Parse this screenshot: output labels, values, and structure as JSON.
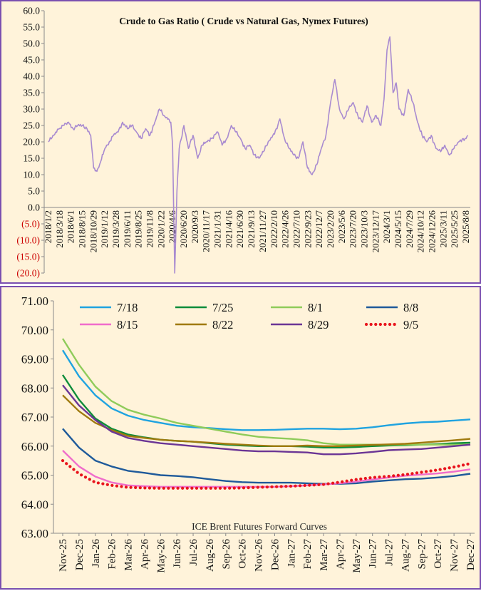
{
  "chart_data": [
    {
      "type": "line",
      "title": "Crude to Gas Ratio ( Crude vs Natural Gas, Nymex Futures)",
      "ylim": [
        -20,
        60
      ],
      "yticks": [
        60,
        55,
        50,
        45,
        40,
        35,
        30,
        25,
        20,
        15,
        10,
        5,
        0,
        -5,
        -10,
        -15,
        -20
      ],
      "ytick_labels": [
        "60.0",
        "55.0",
        "50.0",
        "45.0",
        "40.0",
        "35.0",
        "30.0",
        "25.0",
        "20.0",
        "15.0",
        "10.0",
        "5.0",
        "0.0",
        "(5.0)",
        "(10.0)",
        "(15.0)",
        "(20.0)"
      ],
      "xticks": [
        "2018/1/2",
        "2018/3/18",
        "2018/6/1",
        "2018/8/15",
        "2018/10/29",
        "2019/1/12",
        "2019/3/28",
        "2019/6/11",
        "2019/8/25",
        "2019/11/8",
        "2020/1/22",
        "2020/4/6",
        "2020/6/20",
        "2020/9/3",
        "2020/11/17",
        "2021/1/31",
        "2021/4/16",
        "2021/6/30",
        "2021/9/13",
        "2021/11/27",
        "2022/2/10",
        "2022/4/26",
        "2022/7/10",
        "2022/9/23",
        "2022/12/7",
        "2023/2/20",
        "2023/5/6",
        "2023/7/20",
        "2023/10/3",
        "2023/12/17",
        "2024/3/1",
        "2024/5/15",
        "2024/7/29",
        "2024/10/12",
        "2024/12/26",
        "2025/3/11",
        "2025/5/25",
        "2025/8/8"
      ],
      "grid": false,
      "series": [
        {
          "color": "#A98BD0",
          "x": [
            "2018/1/2",
            "2018/2/1",
            "2018/3/15",
            "2018/4/15",
            "2018/5/15",
            "2018/6/15",
            "2018/7/15",
            "2018/8/15",
            "2018/9/15",
            "2018/10/10",
            "2018/10/29",
            "2018/11/20",
            "2018/12/15",
            "2019/1/12",
            "2019/2/10",
            "2019/3/10",
            "2019/4/10",
            "2019/5/10",
            "2019/6/11",
            "2019/7/10",
            "2019/8/10",
            "2019/9/10",
            "2019/10/10",
            "2019/11/8",
            "2019/12/10",
            "2020/1/10",
            "2020/2/10",
            "2020/3/10",
            "2020/3/25",
            "2020/4/6",
            "2020/4/20",
            "2020/5/5",
            "2020/5/20",
            "2020/6/20",
            "2020/7/20",
            "2020/8/20",
            "2020/9/20",
            "2020/10/20",
            "2020/11/17",
            "2020/12/20",
            "2021/1/31",
            "2021/3/1",
            "2021/4/1",
            "2021/5/1",
            "2021/6/1",
            "2021/7/1",
            "2021/8/1",
            "2021/9/1",
            "2021/10/1",
            "2021/11/1",
            "2021/12/1",
            "2022/1/1",
            "2022/2/1",
            "2022/3/1",
            "2022/3/20",
            "2022/4/20",
            "2022/5/20",
            "2022/6/20",
            "2022/7/20",
            "2022/8/20",
            "2022/9/20",
            "2022/10/20",
            "2022/11/20",
            "2022/12/20",
            "2023/1/20",
            "2023/2/20",
            "2023/3/20",
            "2023/4/20",
            "2023/5/20",
            "2023/6/20",
            "2023/7/20",
            "2023/8/20",
            "2023/9/20",
            "2023/10/20",
            "2023/11/20",
            "2023/12/20",
            "2024/1/20",
            "2024/2/10",
            "2024/3/1",
            "2024/3/20",
            "2024/4/10",
            "2024/5/1",
            "2024/5/20",
            "2024/6/20",
            "2024/7/20",
            "2024/8/20",
            "2024/9/20",
            "2024/10/20",
            "2024/11/20",
            "2024/12/20",
            "2025/1/20",
            "2025/2/20",
            "2025/3/20",
            "2025/4/20",
            "2025/5/20",
            "2025/6/20",
            "2025/7/20",
            "2025/8/8",
            "2025/8/20"
          ],
          "values": [
            20,
            22,
            24,
            25,
            26,
            24,
            25,
            25,
            24,
            22,
            12,
            11,
            14,
            18,
            20,
            22,
            23,
            26,
            24,
            25,
            23,
            21,
            24,
            22,
            26,
            30,
            28,
            27,
            26,
            19,
            -20,
            5,
            18,
            25,
            18,
            22,
            15,
            19,
            20,
            21,
            23,
            19,
            21,
            25,
            23,
            21,
            18,
            19,
            16,
            15,
            17,
            20,
            22,
            24,
            27,
            21,
            18,
            16,
            15,
            20,
            12,
            10,
            13,
            18,
            22,
            32,
            39,
            30,
            27,
            30,
            32,
            28,
            26,
            31,
            26,
            28,
            25,
            33,
            48,
            52,
            35,
            38,
            30,
            28,
            36,
            32,
            26,
            22,
            20,
            22,
            18,
            17,
            19,
            16,
            18,
            20,
            21,
            21,
            22
          ]
        }
      ]
    },
    {
      "type": "line",
      "title": "ICE Brent Futures Forward Curves",
      "ylim": [
        63,
        71
      ],
      "yticks": [
        71,
        70,
        69,
        68,
        67,
        66,
        65,
        64,
        63
      ],
      "ytick_labels": [
        "71.00",
        "70.00",
        "69.00",
        "68.00",
        "67.00",
        "66.00",
        "65.00",
        "64.00",
        "63.00"
      ],
      "categories": [
        "Nov-25",
        "Dec-25",
        "Jan-26",
        "Feb-26",
        "Mar-26",
        "Apr-26",
        "May-26",
        "Jun-26",
        "Jul-26",
        "Aug-26",
        "Sep-26",
        "Oct-26",
        "Nov-26",
        "Dec-26",
        "Jan-27",
        "Feb-27",
        "Mar-27",
        "Apr-27",
        "May-27",
        "Jun-27",
        "Jul-27",
        "Aug-27",
        "Sep-27",
        "Oct-27",
        "Nov-27",
        "Dec-27"
      ],
      "legend": "top",
      "grid": false,
      "series": [
        {
          "name": "7/18",
          "color": "#1FA3E0",
          "dash": "solid",
          "values": [
            69.3,
            68.4,
            67.75,
            67.3,
            67.05,
            66.9,
            66.8,
            66.7,
            66.65,
            66.62,
            66.58,
            66.55,
            66.55,
            66.56,
            66.58,
            66.6,
            66.6,
            66.58,
            66.6,
            66.65,
            66.72,
            66.78,
            66.82,
            66.84,
            66.88,
            66.92
          ]
        },
        {
          "name": "7/25",
          "color": "#0E8C3A",
          "dash": "solid",
          "values": [
            68.45,
            67.6,
            66.95,
            66.6,
            66.4,
            66.3,
            66.22,
            66.18,
            66.15,
            66.1,
            66.05,
            66.02,
            66.0,
            66.0,
            66.0,
            65.98,
            65.95,
            65.95,
            65.97,
            66.0,
            66.02,
            66.03,
            66.05,
            66.07,
            66.1,
            66.12
          ]
        },
        {
          "name": "8/1",
          "color": "#8FCB5A",
          "dash": "solid",
          "values": [
            69.7,
            68.8,
            68.05,
            67.55,
            67.25,
            67.08,
            66.95,
            66.8,
            66.7,
            66.6,
            66.5,
            66.4,
            66.32,
            66.28,
            66.25,
            66.2,
            66.1,
            66.05,
            66.05,
            66.05,
            66.05,
            66.05,
            66.05,
            66.05,
            66.05,
            66.05
          ]
        },
        {
          "name": "8/8",
          "color": "#1F5A9A",
          "dash": "solid",
          "values": [
            66.6,
            65.95,
            65.5,
            65.3,
            65.15,
            65.08,
            65.0,
            64.97,
            64.93,
            64.86,
            64.8,
            64.76,
            64.74,
            64.74,
            64.74,
            64.72,
            64.7,
            64.7,
            64.72,
            64.78,
            64.82,
            64.86,
            64.88,
            64.92,
            64.97,
            65.05
          ]
        },
        {
          "name": "8/15",
          "color": "#F06CCB",
          "dash": "solid",
          "values": [
            65.85,
            65.3,
            64.95,
            64.75,
            64.65,
            64.62,
            64.6,
            64.6,
            64.6,
            64.6,
            64.6,
            64.6,
            64.6,
            64.6,
            64.62,
            64.65,
            64.68,
            64.72,
            64.78,
            64.85,
            64.92,
            64.98,
            65.02,
            65.06,
            65.12,
            65.2
          ]
        },
        {
          "name": "8/22",
          "color": "#A07A0E",
          "dash": "solid",
          "values": [
            67.75,
            67.2,
            66.8,
            66.55,
            66.35,
            66.28,
            66.22,
            66.18,
            66.15,
            66.12,
            66.08,
            66.05,
            66.02,
            66.0,
            66.0,
            66.02,
            66.0,
            66.0,
            66.02,
            66.04,
            66.06,
            66.08,
            66.12,
            66.16,
            66.2,
            66.25
          ]
        },
        {
          "name": "8/29",
          "color": "#6B3595",
          "dash": "solid",
          "values": [
            68.1,
            67.4,
            66.9,
            66.5,
            66.28,
            66.18,
            66.1,
            66.05,
            66.0,
            65.95,
            65.9,
            65.85,
            65.82,
            65.82,
            65.8,
            65.78,
            65.72,
            65.72,
            65.75,
            65.8,
            65.86,
            65.88,
            65.9,
            65.95,
            66.0,
            66.05
          ]
        },
        {
          "name": "9/5",
          "color": "#E8141C",
          "dash": "dotted",
          "values": [
            65.5,
            65.05,
            64.75,
            64.65,
            64.58,
            64.56,
            64.55,
            64.55,
            64.55,
            64.55,
            64.55,
            64.56,
            64.58,
            64.6,
            64.62,
            64.65,
            64.68,
            64.76,
            64.85,
            64.92,
            64.96,
            65.02,
            65.1,
            65.18,
            65.28,
            65.4
          ]
        }
      ]
    }
  ]
}
